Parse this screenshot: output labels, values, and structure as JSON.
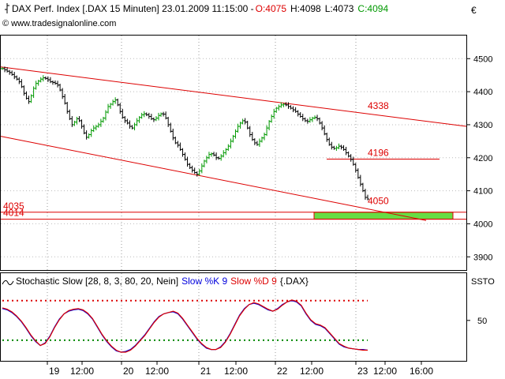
{
  "window": {
    "currency_symbol": "€"
  },
  "chart_data": [
    {
      "type": "ohlc",
      "header": {
        "icon": "bar-chart-icon",
        "title": "DAX Perf. Index [.DAX  15 Minuten] 23.01.2009 11:15:00 -",
        "open": "O:4075",
        "high": "H:4098",
        "low": "L:4073",
        "close": "C:4094",
        "source": "© www.tradesignalonline.com",
        "colors": {
          "down": "#dd0000",
          "up": "#009900",
          "text": "#000000"
        }
      },
      "ylim": [
        3860,
        4570
      ],
      "y_ticks": [
        3900,
        4000,
        4100,
        4200,
        4300,
        4400,
        4500
      ],
      "x_ticks": [
        "19",
        "12:00",
        "20",
        "12:00",
        "21",
        "12:00",
        "22",
        "12:00",
        "23",
        "12:00",
        "16:00"
      ],
      "series": [
        {
          "values_close": [
            4470,
            4466,
            4462,
            4458,
            4452,
            4445,
            4438,
            4430,
            4415,
            4395,
            4380,
            4370,
            4388,
            4410,
            4425,
            4432,
            4438,
            4442,
            4440,
            4436,
            4430,
            4428,
            4425,
            4420,
            4405,
            4385,
            4365,
            4340,
            4318,
            4300,
            4308,
            4318,
            4312,
            4295,
            4275,
            4262,
            4270,
            4282,
            4290,
            4295,
            4300,
            4310,
            4320,
            4338,
            4355,
            4362,
            4370,
            4375,
            4360,
            4340,
            4322,
            4312,
            4305,
            4295,
            4290,
            4300,
            4312,
            4322,
            4330,
            4333,
            4330,
            4325,
            4318,
            4315,
            4320,
            4328,
            4333,
            4332,
            4320,
            4300,
            4280,
            4260,
            4245,
            4238,
            4225,
            4210,
            4195,
            4180,
            4170,
            4162,
            4155,
            4150,
            4160,
            4175,
            4190,
            4200,
            4210,
            4212,
            4208,
            4200,
            4198,
            4205,
            4215,
            4225,
            4235,
            4250,
            4265,
            4280,
            4295,
            4305,
            4312,
            4308,
            4290,
            4270,
            4255,
            4245,
            4240,
            4250,
            4260,
            4270,
            4290,
            4310,
            4325,
            4340,
            4350,
            4355,
            4360,
            4362,
            4360,
            4355,
            4350,
            4345,
            4340,
            4332,
            4325,
            4318,
            4312,
            4310,
            4315,
            4320,
            4322,
            4318,
            4305,
            4290,
            4272,
            4255,
            4240,
            4232,
            4228,
            4230,
            4235,
            4232,
            4225,
            4215,
            4205,
            4195,
            4180,
            4162,
            4140,
            4120,
            4100,
            4080,
            4075
          ]
        }
      ],
      "lines": {
        "channel_labels": [
          "4338",
          "4196",
          "4050"
        ],
        "horizontal_labels": [
          "4035",
          "4014"
        ],
        "color": "#dd0000"
      },
      "highlight_box": {
        "from_value": 4014,
        "to_value": 4035,
        "color": "#66dd44"
      }
    },
    {
      "type": "line",
      "header": {
        "name": "Stochastic Slow [28, 8, 3, 80, 20, Nein]",
        "k_label": "Slow %K 9",
        "d_label": "Slow %D 9",
        "source_tag": "{.DAX}",
        "k_color": "#0000dd",
        "d_color": "#dd0000"
      },
      "right_label": "SSTO",
      "ylim": [
        -10,
        100
      ],
      "y_ticks": [
        50
      ],
      "levels": {
        "upper": 80,
        "lower": 20,
        "upper_color": "#dd0000",
        "lower_color": "#008800"
      },
      "series": [
        {
          "name": "Slow %K 9",
          "values": [
            68,
            66,
            62,
            56,
            48,
            38,
            27,
            18,
            12,
            16,
            26,
            40,
            52,
            60,
            64,
            66,
            67,
            65,
            60,
            52,
            40,
            28,
            18,
            10,
            4,
            2,
            3,
            6,
            12,
            20,
            28,
            38,
            48,
            56,
            60,
            62,
            63,
            60,
            52,
            42,
            32,
            22,
            14,
            8,
            6,
            6,
            10,
            18,
            30,
            44,
            58,
            68,
            74,
            76,
            74,
            70,
            66,
            64,
            68,
            74,
            78,
            80,
            78,
            72,
            60,
            50,
            44,
            42,
            38,
            30,
            22,
            14,
            10,
            8,
            7,
            6,
            6,
            5
          ]
        },
        {
          "name": "Slow %D 9",
          "values": [
            69,
            67,
            63,
            57,
            49,
            39,
            28,
            19,
            12,
            15,
            25,
            39,
            51,
            60,
            65,
            67,
            68,
            66,
            61,
            53,
            41,
            29,
            19,
            11,
            5,
            2,
            2,
            5,
            11,
            19,
            27,
            37,
            47,
            55,
            60,
            62,
            64,
            61,
            53,
            43,
            33,
            23,
            15,
            9,
            6,
            6,
            9,
            17,
            29,
            43,
            57,
            67,
            74,
            77,
            75,
            71,
            67,
            64,
            67,
            73,
            78,
            81,
            79,
            73,
            61,
            51,
            45,
            43,
            39,
            31,
            23,
            15,
            11,
            8,
            7,
            6,
            5,
            5
          ]
        }
      ]
    }
  ]
}
